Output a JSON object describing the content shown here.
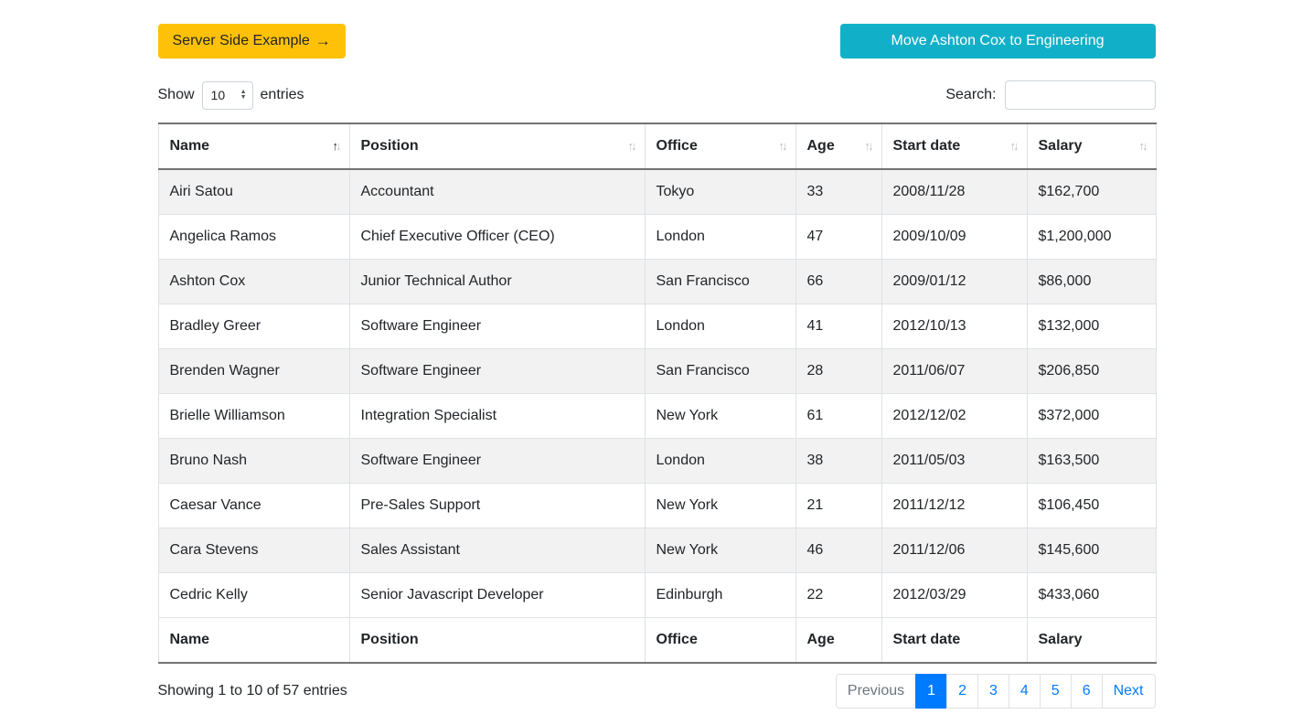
{
  "colors": {
    "warning": "#ffc107",
    "info": "#12b0c8",
    "primary": "#007bff",
    "stripe": "#f2f2f2"
  },
  "icons": {
    "arrow_right": "→",
    "sort_up": "↑",
    "sort_down": "↓",
    "stepper_up": "▲",
    "stepper_down": "▼"
  },
  "buttons": {
    "server_side_label": "Server Side Example",
    "move_ashton_label": "Move Ashton Cox to Engineering"
  },
  "length_control": {
    "show_label": "Show",
    "selected": "10",
    "entries_label": "entries"
  },
  "search": {
    "label": "Search:",
    "value": ""
  },
  "table": {
    "headers": [
      {
        "label": "Name",
        "sort": "asc"
      },
      {
        "label": "Position",
        "sort": "none"
      },
      {
        "label": "Office",
        "sort": "none"
      },
      {
        "label": "Age",
        "sort": "none"
      },
      {
        "label": "Start date",
        "sort": "none"
      },
      {
        "label": "Salary",
        "sort": "none"
      }
    ],
    "rows": [
      [
        "Airi Satou",
        "Accountant",
        "Tokyo",
        "33",
        "2008/11/28",
        "$162,700"
      ],
      [
        "Angelica Ramos",
        "Chief Executive Officer (CEO)",
        "London",
        "47",
        "2009/10/09",
        "$1,200,000"
      ],
      [
        "Ashton Cox",
        "Junior Technical Author",
        "San Francisco",
        "66",
        "2009/01/12",
        "$86,000"
      ],
      [
        "Bradley Greer",
        "Software Engineer",
        "London",
        "41",
        "2012/10/13",
        "$132,000"
      ],
      [
        "Brenden Wagner",
        "Software Engineer",
        "San Francisco",
        "28",
        "2011/06/07",
        "$206,850"
      ],
      [
        "Brielle Williamson",
        "Integration Specialist",
        "New York",
        "61",
        "2012/12/02",
        "$372,000"
      ],
      [
        "Bruno Nash",
        "Software Engineer",
        "London",
        "38",
        "2011/05/03",
        "$163,500"
      ],
      [
        "Caesar Vance",
        "Pre-Sales Support",
        "New York",
        "21",
        "2011/12/12",
        "$106,450"
      ],
      [
        "Cara Stevens",
        "Sales Assistant",
        "New York",
        "46",
        "2011/12/06",
        "$145,600"
      ],
      [
        "Cedric Kelly",
        "Senior Javascript Developer",
        "Edinburgh",
        "22",
        "2012/03/29",
        "$433,060"
      ]
    ],
    "footer": [
      "Name",
      "Position",
      "Office",
      "Age",
      "Start date",
      "Salary"
    ]
  },
  "info": "Showing 1 to 10 of 57 entries",
  "pagination": {
    "previous": "Previous",
    "pages": [
      "1",
      "2",
      "3",
      "4",
      "5",
      "6"
    ],
    "active": "1",
    "next": "Next"
  }
}
